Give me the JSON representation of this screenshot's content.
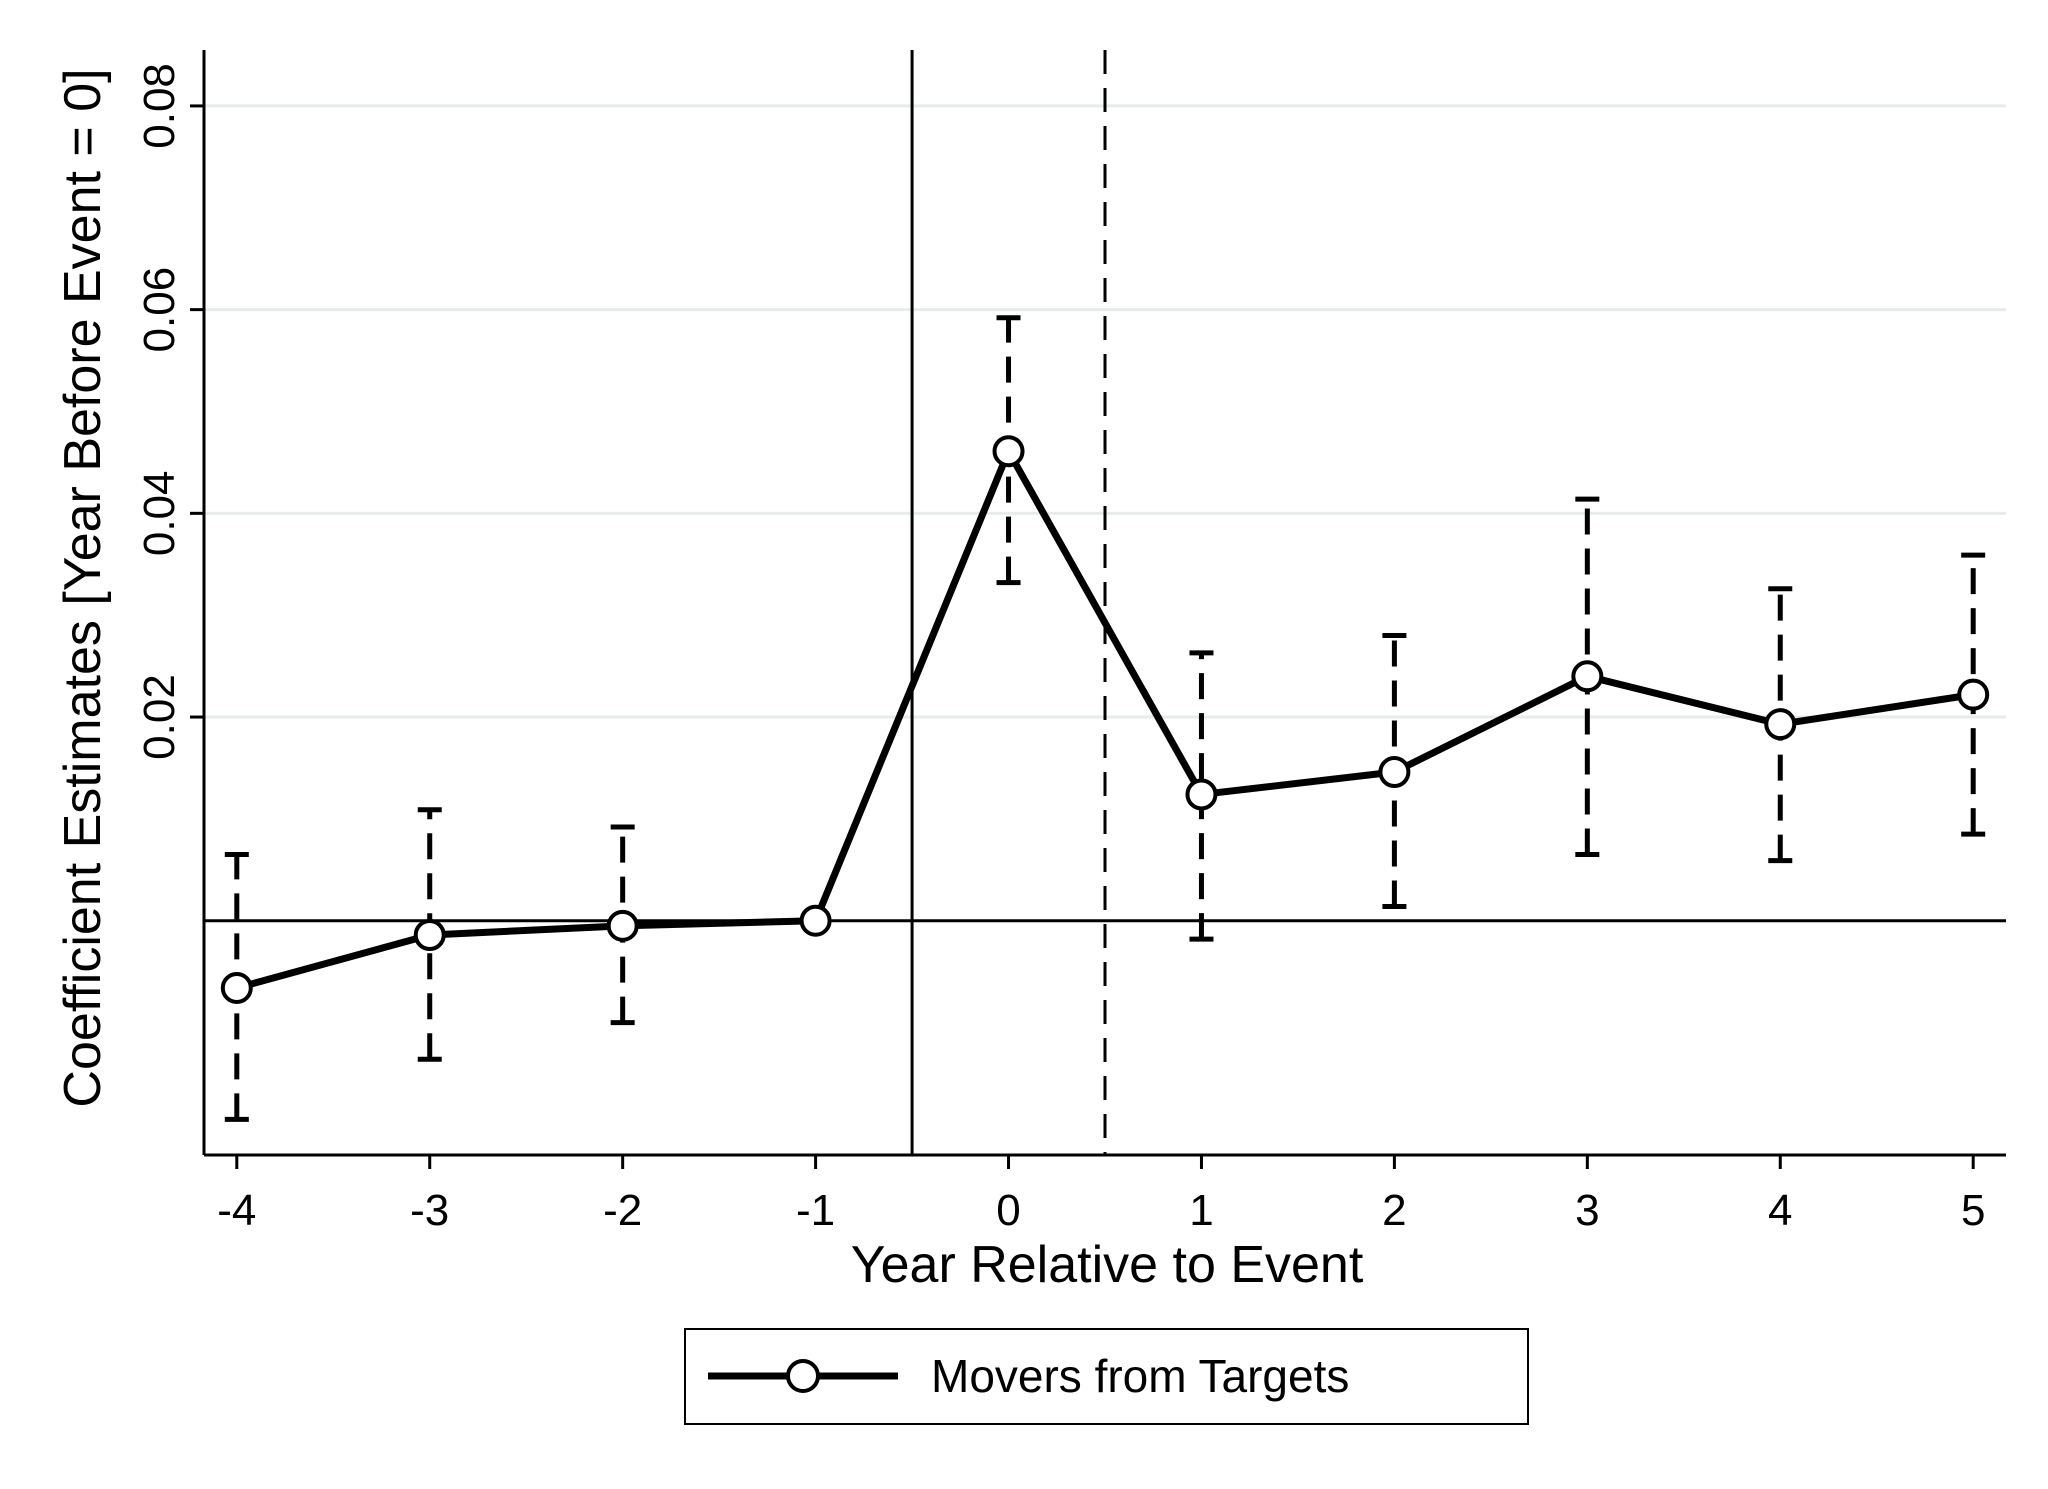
{
  "chart_data": {
    "type": "line",
    "title": "",
    "xlabel": "Year Relative to Event",
    "ylabel": "Coefficient Estimates [Year Before Event = 0]",
    "xlim": [
      -4.17,
      5.17
    ],
    "ylim": [
      -0.023,
      0.085
    ],
    "x_ticks": [
      -4,
      -3,
      -2,
      -1,
      0,
      1,
      2,
      3,
      4,
      5
    ],
    "x_tick_labels": [
      "-4",
      "-3",
      "-2",
      "-1",
      "0",
      "1",
      "2",
      "3",
      "4",
      "5"
    ],
    "y_ticks": [
      0.02,
      0.04,
      0.06,
      0.08
    ],
    "y_tick_labels": [
      "0.02",
      "0.04",
      "0.06",
      "0.08"
    ],
    "grid": "horizontal",
    "legend_position": "bottom",
    "reference_lines": {
      "horizontal_solid_y": 0,
      "vertical_solid_x": -0.5,
      "vertical_dashed_x": 0.5
    },
    "series": [
      {
        "name": "Movers from Targets",
        "x": [
          -4,
          -3,
          -2,
          -1,
          0,
          1,
          2,
          3,
          4,
          5
        ],
        "y": [
          -0.0066,
          -0.0014,
          -0.0005,
          0.0,
          0.0461,
          0.0124,
          0.0146,
          0.024,
          0.0193,
          0.0222
        ],
        "ci_low": [
          -0.0195,
          -0.0136,
          -0.01,
          null,
          0.0332,
          -0.0018,
          0.0014,
          0.0065,
          0.0059,
          0.0085
        ],
        "ci_high": [
          0.0065,
          0.0109,
          0.0092,
          null,
          0.0592,
          0.0263,
          0.028,
          0.0414,
          0.0326,
          0.0359
        ],
        "color": "#000000",
        "marker": "hollow-circle",
        "errorbar_style": "dashed"
      }
    ]
  },
  "legend": {
    "label": "Movers from Targets"
  }
}
